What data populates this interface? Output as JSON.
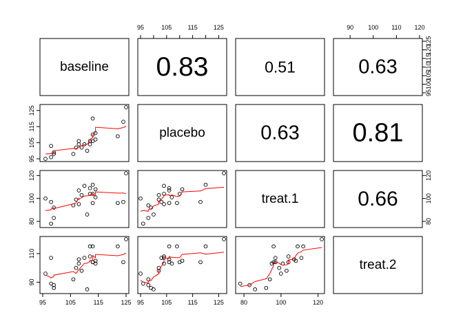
{
  "chart_data": {
    "type": "scatter",
    "variables": [
      "baseline",
      "placebo",
      "treat.1",
      "treat.2"
    ],
    "correlations": [
      {
        "row": 0,
        "col": 1,
        "value": "0.83"
      },
      {
        "row": 0,
        "col": 2,
        "value": "0.51"
      },
      {
        "row": 0,
        "col": 3,
        "value": "0.63"
      },
      {
        "row": 1,
        "col": 2,
        "value": "0.63"
      },
      {
        "row": 1,
        "col": 3,
        "value": "0.81"
      },
      {
        "row": 2,
        "col": 3,
        "value": "0.66"
      }
    ],
    "ranges": [
      [
        95,
        125
      ],
      [
        95,
        127
      ],
      [
        77,
        122
      ],
      [
        84,
        120
      ]
    ],
    "ticks": [
      {
        "values": [
          95,
          105,
          115,
          125
        ],
        "labels": [
          "95",
          "105",
          "115",
          "125"
        ]
      },
      {
        "values": [
          95,
          105,
          115,
          125
        ],
        "labels": [
          "95",
          "105",
          "115",
          "125"
        ]
      },
      {
        "values": [
          80,
          100,
          120
        ],
        "labels": [
          "80",
          "100",
          "120"
        ]
      },
      {
        "values": [
          90,
          110
        ],
        "labels": [
          "90",
          "110"
        ]
      }
    ],
    "top_axis": [
      {
        "col": 1,
        "var": 1,
        "values": [
          95,
          100,
          105,
          110,
          115,
          120,
          125
        ],
        "labels": [
          "95",
          "",
          "105",
          "",
          "115",
          "",
          "125"
        ]
      },
      {
        "col": 3,
        "var": 3,
        "values": [
          90,
          100,
          110,
          120
        ],
        "labels": [
          "90",
          "100",
          "110",
          "120"
        ]
      }
    ],
    "right_axis": [
      {
        "row": 0,
        "var": 0,
        "values": [
          95,
          100,
          105,
          110,
          115,
          120,
          125
        ],
        "labels": [
          "95",
          "100",
          "105",
          "110",
          "115",
          "120",
          "125"
        ]
      },
      {
        "row": 2,
        "var": 2,
        "values": [
          80,
          100,
          120
        ],
        "labels": [
          "80",
          "100",
          "120"
        ]
      }
    ],
    "observations": [
      [
        96,
        95,
        100,
        96
      ],
      [
        98,
        96,
        78,
        89
      ],
      [
        98,
        103,
        97,
        107
      ],
      [
        99,
        98,
        83,
        88
      ],
      [
        99,
        99,
        92,
        86
      ],
      [
        106,
        98,
        94,
        92
      ],
      [
        107,
        102,
        99,
        100
      ],
      [
        108,
        104,
        95,
        103
      ],
      [
        108,
        106,
        107,
        106
      ],
      [
        109,
        102,
        103,
        98
      ],
      [
        110,
        104,
        111,
        107
      ],
      [
        111,
        100,
        86,
        85
      ],
      [
        112,
        104,
        104,
        108
      ],
      [
        112,
        106,
        109,
        115
      ],
      [
        113,
        106,
        96,
        104
      ],
      [
        113,
        120,
        112,
        115
      ],
      [
        113,
        110,
        104,
        104
      ],
      [
        114,
        111,
        108,
        105
      ],
      [
        114,
        107,
        101,
        103
      ],
      [
        122,
        109,
        96,
        115
      ],
      [
        124,
        118,
        97,
        104
      ],
      [
        125,
        127,
        122,
        120
      ]
    ],
    "smooth_color": "#ff0000",
    "point_color": "#000000"
  }
}
